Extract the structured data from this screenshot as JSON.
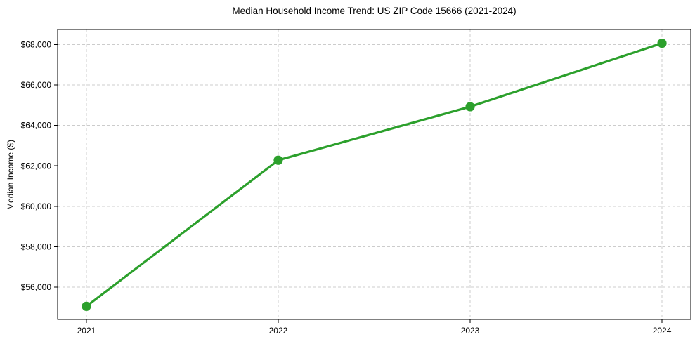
{
  "figure": {
    "background": "#ffffff"
  },
  "chart_data": {
    "type": "line",
    "title": "Median Household Income Trend: US ZIP Code 15666 (2021-2024)",
    "xlabel": "",
    "ylabel": "Median Income ($)",
    "x": [
      2021,
      2022,
      2023,
      2024
    ],
    "x_tick_labels": [
      "2021",
      "2022",
      "2023",
      "2024"
    ],
    "y": [
      55050,
      62280,
      64930,
      68070
    ],
    "y_ticks": [
      {
        "value": 56000,
        "label": "$56,000"
      },
      {
        "value": 58000,
        "label": "$58,000"
      },
      {
        "value": 60000,
        "label": "$60,000"
      },
      {
        "value": 62000,
        "label": "$62,000"
      },
      {
        "value": 64000,
        "label": "$64,000"
      },
      {
        "value": 66000,
        "label": "$66,000"
      },
      {
        "value": 68000,
        "label": "$68,000"
      }
    ],
    "ylim": [
      54400,
      68750
    ],
    "xlim": [
      2020.85,
      2024.15
    ],
    "grid": true,
    "grid_style": "dashed",
    "legend_position": "none",
    "colors": {
      "line": "#2ca02c",
      "marker": "#2ca02c",
      "grid": "#cccccc",
      "axis": "#000000",
      "text": "#000000",
      "background": "#ffffff"
    }
  }
}
